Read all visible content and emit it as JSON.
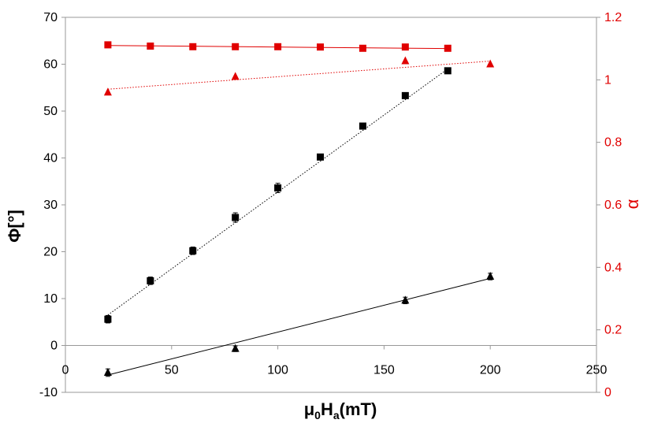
{
  "chart_data": {
    "type": "scatter",
    "title": "",
    "xlabel": "μ0Ha(mT)",
    "xlabel_parts": {
      "main": "μ",
      "sub1": "0",
      "mid": "H",
      "sub2": "a",
      "tail": "(mT)"
    },
    "ylabel": "Φ[°]",
    "y2label": "α",
    "xlim": [
      0,
      250
    ],
    "ylim": [
      -10,
      70
    ],
    "y2lim": [
      0,
      1.2
    ],
    "x_ticks": [
      "0",
      "50",
      "100",
      "150",
      "200",
      "250"
    ],
    "y_ticks": [
      "-10",
      "0",
      "10",
      "20",
      "30",
      "40",
      "50",
      "60",
      "70"
    ],
    "y2_ticks": [
      "0",
      "0.2",
      "0.4",
      "0.6",
      "0.8",
      "1",
      "1.2"
    ],
    "grid": false,
    "legend": "none",
    "colors": {
      "black": "#000000",
      "red": "#e00000"
    },
    "series": [
      {
        "axis": "left",
        "marker": "square",
        "color": "#000000",
        "line": "dotted",
        "x": [
          20,
          40,
          60,
          80,
          100,
          120,
          140,
          160,
          180
        ],
        "y": [
          5.6,
          13.8,
          20.2,
          27.3,
          33.6,
          40.2,
          46.8,
          53.3,
          58.6
        ],
        "err": [
          0.8,
          0.8,
          0.8,
          1.0,
          1.0,
          0.5,
          0.5,
          0.5,
          0.5
        ],
        "trend": [
          [
            20,
            6.5
          ],
          [
            180,
            59
          ]
        ]
      },
      {
        "axis": "left",
        "marker": "triangle",
        "color": "#000000",
        "line": "solid",
        "x": [
          20,
          80,
          160,
          200
        ],
        "y": [
          -5.8,
          -0.7,
          9.6,
          14.7
        ],
        "err": [
          0.8,
          0.6,
          0.7,
          0.7
        ],
        "trend": [
          [
            20,
            -6.3
          ],
          [
            200,
            14.3
          ]
        ]
      },
      {
        "axis": "right",
        "marker": "square",
        "color": "#e00000",
        "line": "solid",
        "x": [
          20,
          40,
          60,
          80,
          100,
          120,
          140,
          160,
          180
        ],
        "y": [
          1.112,
          1.108,
          1.106,
          1.106,
          1.106,
          1.105,
          1.101,
          1.105,
          1.101
        ],
        "trend": [
          [
            20,
            1.11
          ],
          [
            180,
            1.1
          ]
        ]
      },
      {
        "axis": "right",
        "marker": "triangle",
        "color": "#e00000",
        "line": "dotted",
        "x": [
          20,
          80,
          160,
          200
        ],
        "y": [
          0.96,
          1.01,
          1.06,
          1.05
        ],
        "trend": [
          [
            20,
            0.97
          ],
          [
            200,
            1.06
          ]
        ]
      }
    ]
  }
}
